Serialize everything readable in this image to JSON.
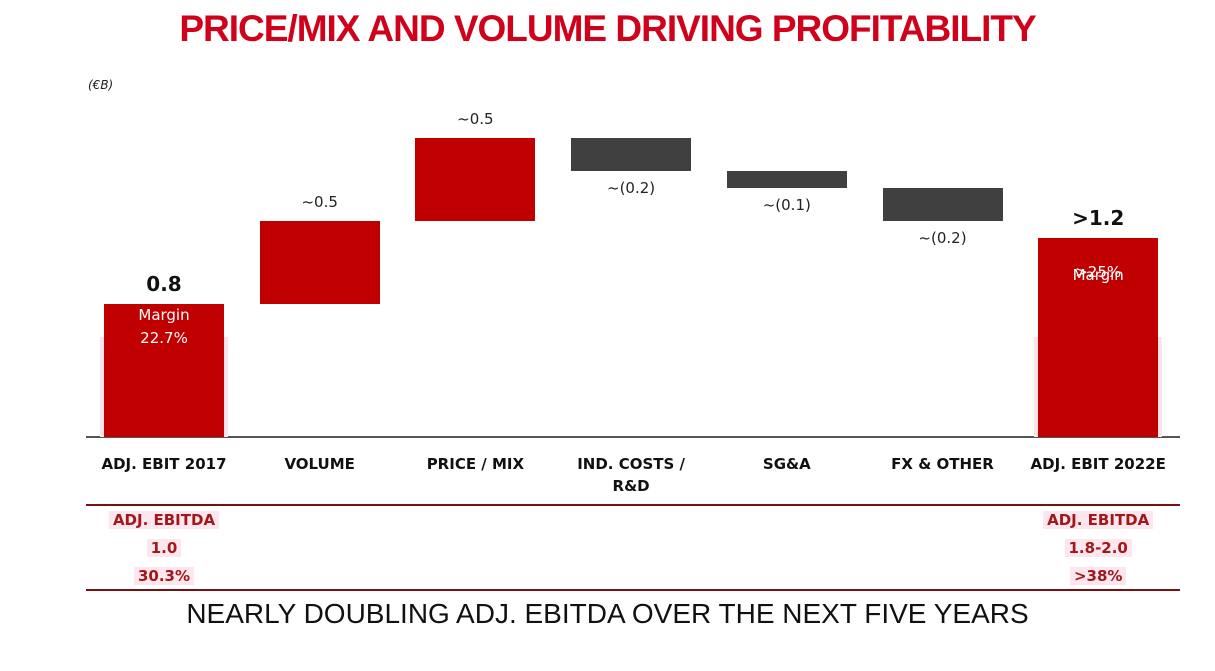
{
  "chart_data": {
    "type": "waterfall",
    "title": "PRICE/MIX AND VOLUME DRIVING PROFITABILITY",
    "unit_label": "(€B)",
    "categories": [
      "ADJ. EBIT 2017",
      "VOLUME",
      "PRICE / MIX",
      "IND. COSTS / R&D",
      "SG&A",
      "FX & OTHER",
      "ADJ. EBIT 2022E"
    ],
    "values": [
      0.8,
      0.5,
      0.5,
      -0.2,
      -0.1,
      -0.2,
      1.2
    ],
    "value_labels": [
      "0.8",
      "~0.5",
      "~0.5",
      "~(0.2)",
      "~(0.1)",
      "~(0.2)",
      ">1.2"
    ],
    "totals": [
      true,
      false,
      false,
      false,
      false,
      false,
      true
    ],
    "colors": {
      "total": "#c00000",
      "increase": "#c00000",
      "decrease": "#404040"
    },
    "annotations": [
      {
        "category": "ADJ. EBIT 2017",
        "label": "Margin",
        "value": "22.7%"
      },
      {
        "category": "ADJ. EBIT 2022E",
        "label": "Margin",
        "value": ">25%"
      }
    ],
    "ebitda": [
      {
        "category": "ADJ. EBIT 2017",
        "title": "ADJ. EBITDA",
        "value": "1.0",
        "margin": "30.3%"
      },
      {
        "category": "ADJ. EBIT 2022E",
        "title": "ADJ. EBITDA",
        "value": "1.8-2.0",
        "margin": ">38%"
      }
    ],
    "subtitle": "NEARLY DOUBLING ADJ. EBITDA OVER THE NEXT FIVE YEARS"
  }
}
